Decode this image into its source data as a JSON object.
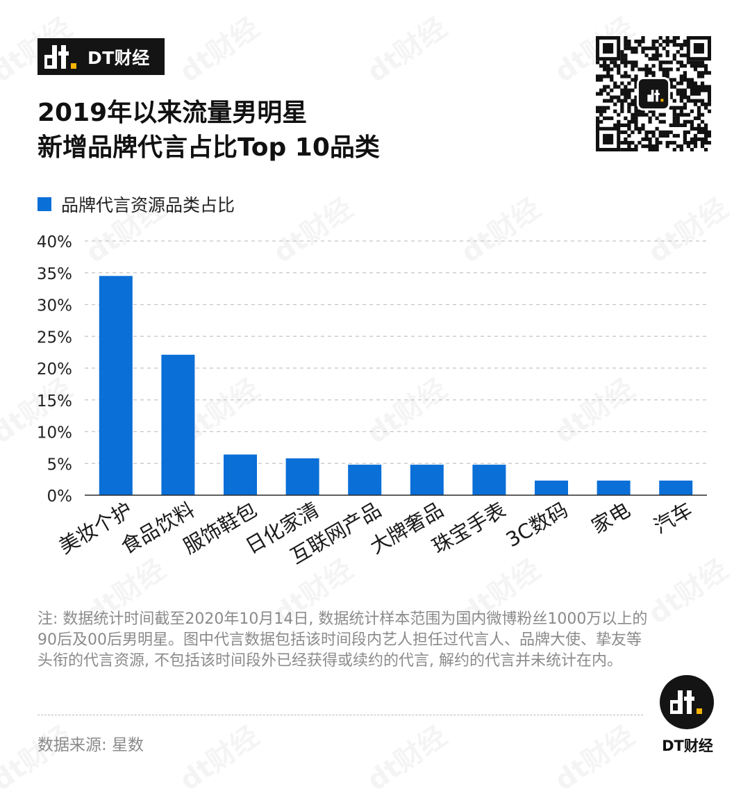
{
  "brand": {
    "name": "DT财经",
    "accent": "#f5b400"
  },
  "title_lines": [
    "2019年以来流量男明星",
    "新增品牌代言占比Top 10品类"
  ],
  "chart_data": {
    "type": "bar",
    "categories": [
      "美妆个护",
      "食品饮料",
      "服饰鞋包",
      "日化家清",
      "互联网产品",
      "大牌奢品",
      "珠宝手表",
      "3C数码",
      "家电",
      "汽车"
    ],
    "series": [
      {
        "name": "品牌代言资源品类占比",
        "values": [
          34.5,
          22.1,
          6.4,
          5.8,
          4.8,
          4.8,
          4.8,
          2.3,
          2.3,
          2.3
        ],
        "color": "#0a6fd7"
      }
    ],
    "ylim": [
      0,
      40
    ],
    "yticks": [
      "0%",
      "5%",
      "10%",
      "15%",
      "20%",
      "25%",
      "30%",
      "35%",
      "40%"
    ],
    "grid": true,
    "legend_position": "top-left"
  },
  "note": "注: 数据统计时间截至2020年10月14日, 数据统计样本范围为国内微博粉丝1000万以上的90后及00后男明星。图中代言数据包括该时间段内艺人担任过代言人、品牌大使、挚友等头衔的代言资源, 不包括该时间段外已经获得或续约的代言, 解约的代言并未统计在内。",
  "source": "数据来源: 星数",
  "watermark": "dt财经"
}
